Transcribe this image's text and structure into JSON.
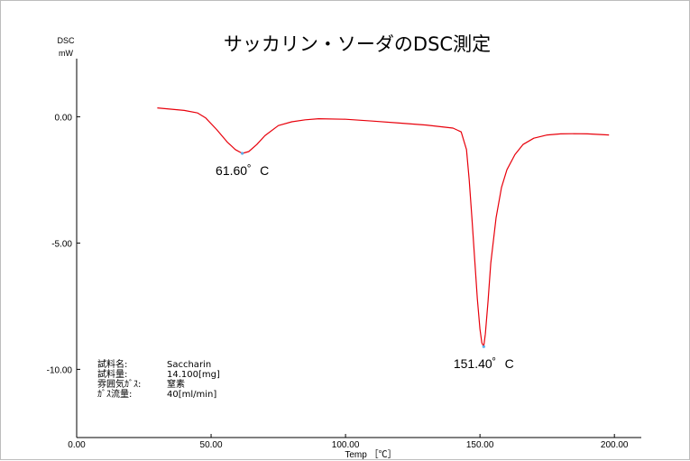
{
  "chart_data": {
    "type": "line",
    "title": "サッカリン・ソーダのDSC測定",
    "ylabel": "DSC",
    "yunit": "mW",
    "xlabel": "Temp ［℃］",
    "xlim": [
      0,
      210
    ],
    "ylim": [
      -12.7,
      2.3
    ],
    "xticks": [
      0,
      50,
      100,
      150,
      200
    ],
    "xtick_labels": [
      "0.00",
      "50.00",
      "100.00",
      "150.00",
      "200.00"
    ],
    "yticks": [
      0,
      -5,
      -10
    ],
    "ytick_labels": [
      "0.00",
      "-5.00",
      "-10.00"
    ],
    "grid": false,
    "line_color": "#e8000b",
    "peak_marker_color": "#5aaeea",
    "series": [
      {
        "x": [
          30,
          40,
          45,
          48,
          52,
          56,
          59,
          61.6,
          64,
          67,
          70,
          75,
          80,
          85,
          90,
          100,
          110,
          120,
          130,
          140,
          143,
          145,
          146,
          147,
          148,
          149,
          150,
          150.7,
          151.4,
          152,
          153,
          154,
          156,
          158,
          160,
          163,
          166,
          170,
          175,
          180,
          185,
          190,
          198
        ],
        "y": [
          0.35,
          0.25,
          0.15,
          -0.05,
          -0.5,
          -1.0,
          -1.3,
          -1.45,
          -1.38,
          -1.1,
          -0.75,
          -0.35,
          -0.2,
          -0.12,
          -0.08,
          -0.1,
          -0.17,
          -0.25,
          -0.33,
          -0.45,
          -0.6,
          -1.3,
          -2.5,
          -4.0,
          -5.6,
          -7.2,
          -8.4,
          -8.95,
          -9.1,
          -8.6,
          -7.3,
          -5.8,
          -4.0,
          -2.8,
          -2.1,
          -1.5,
          -1.1,
          -0.85,
          -0.72,
          -0.68,
          -0.67,
          -0.68,
          -0.72
        ]
      }
    ],
    "annotations": [
      {
        "text": "61.60゜C",
        "x": 61.6,
        "y": -1.45,
        "position": "below"
      },
      {
        "text": "151.40゜C",
        "x": 151.4,
        "y": -9.1,
        "position": "below"
      }
    ]
  },
  "sample_info": [
    {
      "label": "試料名:",
      "value": "Saccharin"
    },
    {
      "label": "試料量:",
      "value": "14.100[mg]"
    },
    {
      "label": "雰囲気ｶﾞｽ:",
      "value": "窒素"
    },
    {
      "label": "ｶﾞｽ流量:",
      "value": "40[ml/min]"
    }
  ]
}
